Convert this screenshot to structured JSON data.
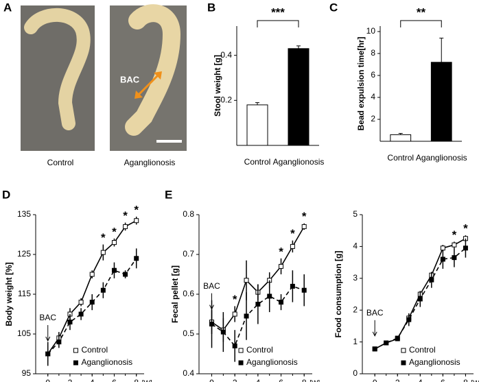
{
  "panel_a": {
    "label": "A",
    "captions": [
      "Control",
      "Aganglionosis"
    ],
    "annotation": "BAC"
  },
  "chart_data": [
    {
      "type": "bar",
      "panel": "B",
      "ylabel": "Stool weight [g]",
      "categories": [
        "Control",
        "Aganglionosis"
      ],
      "values": [
        0.18,
        0.43
      ],
      "errors": [
        0.01,
        0.012
      ],
      "colors": [
        "#ffffff",
        "#000000"
      ],
      "ylim": [
        0,
        0.53
      ],
      "yticks": [
        0.2,
        0.4
      ],
      "significance": "***"
    },
    {
      "type": "bar",
      "panel": "C",
      "ylabel": "Bead expulsion time[hr]",
      "categories": [
        "Control",
        "Aganglionosis"
      ],
      "values": [
        0.6,
        7.2
      ],
      "errors": [
        0.12,
        2.2
      ],
      "colors": [
        "#ffffff",
        "#000000"
      ],
      "ylim": [
        0,
        10.5
      ],
      "yticks": [
        2,
        4,
        6,
        8,
        10
      ],
      "significance": "**"
    },
    {
      "type": "line",
      "panel": "D",
      "ylabel": "Body weight [%]",
      "xunit": "[W]",
      "annotation": "BAC",
      "x": [
        0,
        1,
        2,
        3,
        4,
        5,
        6,
        7,
        8
      ],
      "xlim": [
        -1.1,
        8.7
      ],
      "xticks": [
        0,
        2,
        4,
        6,
        8
      ],
      "ylim": [
        95,
        135
      ],
      "yticks": [
        95,
        105,
        115,
        125,
        135
      ],
      "legend": "lower right",
      "series": [
        {
          "name": "Control",
          "marker": "open",
          "dash": false,
          "values": [
            100,
            104,
            110,
            113,
            120,
            125.5,
            128,
            132,
            133.5
          ],
          "errors": [
            2,
            1.5,
            1.5,
            1,
            1,
            2,
            1,
            1,
            1
          ]
        },
        {
          "name": "Aganglionosis",
          "marker": "filled",
          "dash": true,
          "values": [
            100,
            103,
            108,
            110,
            113,
            116,
            121,
            120,
            124
          ],
          "errors": [
            3,
            1.5,
            2,
            1.5,
            2,
            2,
            2,
            1,
            2.5
          ]
        }
      ],
      "significance": [
        {
          "x": 5,
          "text": "*"
        },
        {
          "x": 6,
          "text": "*"
        },
        {
          "x": 7,
          "text": "*"
        },
        {
          "x": 8,
          "text": "*"
        }
      ]
    },
    {
      "type": "line",
      "panel": "E",
      "ylabel": "Fecal pellet [g]",
      "xunit": "[W]",
      "annotation": "BAC",
      "x": [
        0,
        1,
        2,
        3,
        4,
        5,
        6,
        7,
        8
      ],
      "xlim": [
        -1.1,
        8.7
      ],
      "xticks": [
        0,
        2,
        4,
        6,
        8
      ],
      "ylim": [
        0.4,
        0.8
      ],
      "yticks": [
        0.4,
        0.5,
        0.6,
        0.7,
        0.8
      ],
      "legend": "lower right",
      "series": [
        {
          "name": "Control",
          "marker": "open",
          "dash": false,
          "values": [
            0.53,
            0.51,
            0.55,
            0.635,
            0.605,
            0.635,
            0.67,
            0.72,
            0.77
          ],
          "errors": [
            0.03,
            0.03,
            0.02,
            0.05,
            0.02,
            0.02,
            0.02,
            0.015,
            0.008
          ]
        },
        {
          "name": "Aganglionosis",
          "marker": "filled",
          "dash": true,
          "values": [
            0.525,
            0.505,
            0.47,
            0.545,
            0.575,
            0.595,
            0.58,
            0.62,
            0.61
          ],
          "errors": [
            0.06,
            0.05,
            0.04,
            0.06,
            0.05,
            0.04,
            0.02,
            0.04,
            0.04
          ]
        }
      ],
      "significance": [
        {
          "x": 2,
          "text": "*"
        },
        {
          "x": 6,
          "text": "*"
        },
        {
          "x": 7,
          "text": "*"
        },
        {
          "x": 8,
          "text": "*"
        }
      ]
    },
    {
      "type": "line",
      "ylabel": "Food consumption [g]",
      "xunit": "[W]",
      "annotation": "BAC",
      "x": [
        0,
        1,
        2,
        3,
        4,
        5,
        6,
        7,
        8
      ],
      "xlim": [
        -1.1,
        8.7
      ],
      "xticks": [
        0,
        2,
        4,
        6,
        8
      ],
      "ylim": [
        0,
        5
      ],
      "yticks": [
        0,
        1,
        2,
        3,
        4,
        5
      ],
      "legend": "lower right",
      "series": [
        {
          "name": "Control",
          "marker": "open",
          "dash": false,
          "values": [
            0.78,
            0.97,
            1.1,
            1.75,
            2.5,
            3.1,
            3.95,
            4.05,
            4.25
          ],
          "errors": [
            0.05,
            0.05,
            0.05,
            0.1,
            0.1,
            0.1,
            0.1,
            0.1,
            0.1
          ]
        },
        {
          "name": "Aganglionosis",
          "marker": "filled",
          "dash": true,
          "values": [
            0.78,
            0.97,
            1.12,
            1.7,
            2.35,
            2.95,
            3.6,
            3.65,
            3.95
          ],
          "errors": [
            0.05,
            0.05,
            0.05,
            0.2,
            0.25,
            0.25,
            0.3,
            0.3,
            0.3
          ]
        }
      ],
      "significance": [
        {
          "x": 7,
          "text": "*"
        },
        {
          "x": 8,
          "text": "*"
        }
      ]
    }
  ]
}
